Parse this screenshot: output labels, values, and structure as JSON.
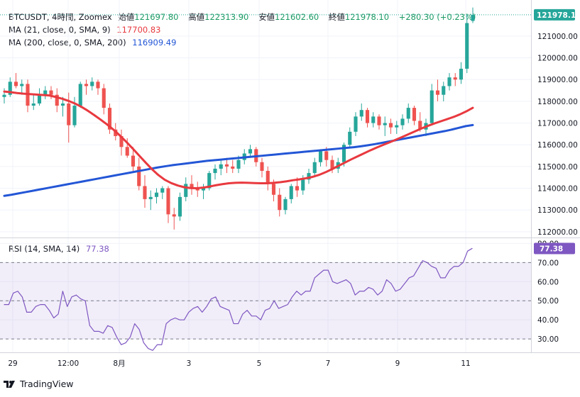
{
  "header": {
    "symbol": "BTCUSDT, 4時間, Zoomex",
    "open_label": "始値",
    "open": "121697.80",
    "high_label": "高値",
    "high": "122313.90",
    "low_label": "安値",
    "low": "121602.60",
    "close_label": "終値",
    "close": "121978.10",
    "change": "+280.30 (+0.23%)"
  },
  "ma21": {
    "label": "MA (21, close, 0, SMA, 9)",
    "value": "117700.83",
    "color": "#e8393f"
  },
  "ma200": {
    "label": "MA (200, close, 0, SMA, 200)",
    "value": "116909.49",
    "color": "#2356d6"
  },
  "rsi": {
    "label": "RSI (14, SMA, 14)",
    "value": "77.38",
    "color": "#7e57c2"
  },
  "price_badge": "121978.10",
  "branding": "TradingView",
  "colors": {
    "up": "#26a69a",
    "down": "#ef5350"
  },
  "chart_data": [
    {
      "type": "candlestick",
      "yaxis_ticks": [
        "112000.00",
        "113000.00",
        "114000.00",
        "115000.00",
        "116000.00",
        "117000.00",
        "118000.00",
        "119000.00",
        "120000.00",
        "121000.00"
      ],
      "ylim": [
        111800,
        122400
      ],
      "xaxis_ticks": [
        "29",
        "12:00",
        "8月",
        "3",
        "5",
        "7",
        "9",
        "11"
      ],
      "candles": [
        [
          118200,
          118600,
          117900,
          118300
        ],
        [
          118300,
          119100,
          118200,
          118900
        ],
        [
          118900,
          119300,
          118600,
          118700
        ],
        [
          118700,
          119000,
          118300,
          118800
        ],
        [
          118800,
          119000,
          117500,
          117800
        ],
        [
          117800,
          118300,
          117600,
          117900
        ],
        [
          117900,
          118600,
          117800,
          118300
        ],
        [
          118300,
          118700,
          118100,
          118500
        ],
        [
          118500,
          118700,
          118100,
          118300
        ],
        [
          118300,
          118600,
          117500,
          117800
        ],
        [
          117800,
          118200,
          117300,
          117900
        ],
        [
          117900,
          118400,
          116100,
          116900
        ],
        [
          116900,
          118200,
          116800,
          117800
        ],
        [
          117800,
          118900,
          117700,
          118800
        ],
        [
          118800,
          119000,
          118300,
          118700
        ],
        [
          118700,
          119100,
          118500,
          118900
        ],
        [
          118900,
          119000,
          118300,
          118600
        ],
        [
          118600,
          118800,
          117400,
          117700
        ],
        [
          117700,
          117900,
          116500,
          116700
        ],
        [
          116700,
          117000,
          116200,
          116400
        ],
        [
          116400,
          116700,
          115500,
          115900
        ],
        [
          115900,
          116300,
          115400,
          115500
        ],
        [
          115500,
          115900,
          114800,
          115000
        ],
        [
          115000,
          115400,
          113900,
          114100
        ],
        [
          114100,
          114600,
          113100,
          113500
        ],
        [
          113500,
          113900,
          113000,
          113600
        ],
        [
          113600,
          114000,
          113300,
          113800
        ],
        [
          113800,
          114100,
          113500,
          114000
        ],
        [
          114000,
          114100,
          112400,
          112800
        ],
        [
          112800,
          113100,
          112100,
          112700
        ],
        [
          112700,
          113800,
          112500,
          113600
        ],
        [
          113600,
          114500,
          113400,
          114200
        ],
        [
          114200,
          114600,
          113700,
          114000
        ],
        [
          114000,
          114300,
          113600,
          113900
        ],
        [
          113900,
          114200,
          113500,
          114000
        ],
        [
          114000,
          114800,
          113900,
          114700
        ],
        [
          114700,
          115100,
          114400,
          114900
        ],
        [
          114900,
          115300,
          114600,
          115100
        ],
        [
          115100,
          115400,
          114700,
          115000
        ],
        [
          115000,
          115300,
          114700,
          114900
        ],
        [
          114900,
          115500,
          114700,
          115300
        ],
        [
          115300,
          115800,
          115100,
          115600
        ],
        [
          115600,
          116000,
          115400,
          115800
        ],
        [
          115800,
          115900,
          115000,
          115200
        ],
        [
          115200,
          115400,
          114500,
          114800
        ],
        [
          114800,
          115000,
          113900,
          114200
        ],
        [
          114200,
          114400,
          113400,
          113700
        ],
        [
          113700,
          114000,
          112700,
          113000
        ],
        [
          113000,
          113600,
          112800,
          113500
        ],
        [
          113500,
          114200,
          113300,
          114100
        ],
        [
          114100,
          114500,
          113600,
          113900
        ],
        [
          113900,
          114600,
          113700,
          114400
        ],
        [
          114400,
          114900,
          114200,
          114700
        ],
        [
          114700,
          115400,
          114500,
          115200
        ],
        [
          115200,
          115800,
          115000,
          115700
        ],
        [
          115700,
          115900,
          115000,
          115300
        ],
        [
          115300,
          115500,
          114700,
          114900
        ],
        [
          114900,
          115400,
          114700,
          115200
        ],
        [
          115200,
          116100,
          115000,
          116000
        ],
        [
          116000,
          116800,
          115900,
          116600
        ],
        [
          116600,
          117500,
          116400,
          117300
        ],
        [
          117300,
          117900,
          117100,
          117600
        ],
        [
          117600,
          117700,
          116800,
          117000
        ],
        [
          117000,
          117500,
          116800,
          117300
        ],
        [
          117300,
          117400,
          116700,
          116900
        ],
        [
          116900,
          117300,
          116400,
          117000
        ],
        [
          117000,
          117200,
          116500,
          116800
        ],
        [
          116800,
          117100,
          116500,
          116900
        ],
        [
          116900,
          117400,
          116700,
          117200
        ],
        [
          117200,
          117900,
          117000,
          117700
        ],
        [
          117700,
          117800,
          116900,
          117100
        ],
        [
          117100,
          117500,
          116600,
          116700
        ],
        [
          116700,
          117200,
          116400,
          117000
        ],
        [
          117000,
          118800,
          116900,
          118500
        ],
        [
          118500,
          119000,
          118000,
          118300
        ],
        [
          118300,
          118900,
          118000,
          118700
        ],
        [
          118700,
          119300,
          118500,
          119100
        ],
        [
          119100,
          119300,
          118700,
          119000
        ],
        [
          119000,
          119800,
          118800,
          119500
        ],
        [
          119500,
          122000,
          119300,
          121600
        ],
        [
          121697.8,
          122313.9,
          121602.6,
          121978.1
        ]
      ],
      "ma21": [
        118450,
        118420,
        118380,
        118350,
        118330,
        118310,
        118290,
        118270,
        118200,
        118120,
        118020,
        117900,
        117750,
        117570,
        117370,
        117160,
        116940,
        116700,
        116430,
        116140,
        115830,
        115510,
        115190,
        114880,
        114610,
        114390,
        114240,
        114130,
        114050,
        114010,
        114000,
        114030,
        114080,
        114140,
        114190,
        114230,
        114250,
        114260,
        114250,
        114240,
        114230,
        114230,
        114250,
        114280,
        114320,
        114370,
        114410,
        114460,
        114520,
        114610,
        114730,
        114870,
        115020,
        115170,
        115320,
        115460,
        115600,
        115740,
        115870,
        115990,
        116110,
        116230,
        116360,
        116490,
        116620,
        116750,
        116870,
        116980,
        117080,
        117180,
        117280,
        117400,
        117540,
        117700
      ],
      "ma200": [
        113650,
        113700,
        113760,
        113820,
        113880,
        113940,
        114000,
        114060,
        114120,
        114180,
        114240,
        114300,
        114360,
        114420,
        114480,
        114540,
        114600,
        114660,
        114720,
        114780,
        114840,
        114900,
        114960,
        115010,
        115060,
        115100,
        115140,
        115180,
        115220,
        115260,
        115290,
        115320,
        115350,
        115380,
        115410,
        115440,
        115470,
        115500,
        115530,
        115560,
        115590,
        115620,
        115650,
        115680,
        115710,
        115740,
        115770,
        115800,
        115830,
        115860,
        115890,
        115930,
        115980,
        116030,
        116090,
        116150,
        116210,
        116270,
        116330,
        116390,
        116450,
        116510,
        116570,
        116630,
        116700,
        116780,
        116860,
        116909.49
      ]
    },
    {
      "type": "line",
      "name": "RSI",
      "ylim": [
        23,
        82
      ],
      "yaxis_ticks": [
        "30.00",
        "40.00",
        "50.00",
        "60.00",
        "70.00",
        "80.00"
      ],
      "bands": [
        30,
        50,
        70
      ],
      "values": [
        48,
        48,
        54,
        55,
        52,
        44,
        44,
        47,
        48,
        48,
        45,
        41,
        43,
        55,
        47,
        52,
        53,
        51,
        50,
        37,
        34,
        34,
        33,
        37,
        36,
        31,
        27,
        28,
        31,
        38,
        35,
        28,
        25,
        24,
        27,
        27,
        38,
        40,
        41,
        40,
        40,
        44,
        46,
        47,
        44,
        47,
        51,
        52,
        47,
        46,
        45,
        38,
        38,
        43,
        45,
        42,
        42,
        40,
        45,
        46,
        50,
        46,
        47,
        48,
        52,
        55,
        53,
        55,
        55,
        62,
        64,
        66,
        66,
        60,
        59,
        60,
        61,
        59,
        53,
        55,
        55,
        57,
        56,
        53,
        55,
        61,
        59,
        55,
        56,
        59,
        62,
        63,
        67,
        71,
        70,
        68,
        67,
        62,
        62,
        66,
        68,
        68,
        70,
        76,
        77.38
      ]
    }
  ]
}
